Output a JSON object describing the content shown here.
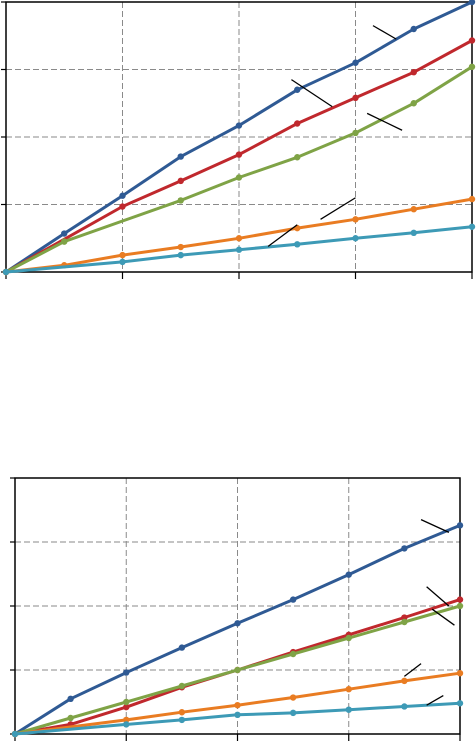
{
  "chart_data": [
    {
      "type": "line",
      "title": "",
      "xlabel": "",
      "ylabel": "",
      "xlim": [
        0,
        4
      ],
      "ylim": [
        0,
        4
      ],
      "grid": true,
      "legend": "none",
      "series": [
        {
          "color": "#2f5a94",
          "x": [
            0,
            0.5,
            1,
            1.5,
            2,
            2.5,
            3,
            3.5,
            4
          ],
          "y": [
            0,
            0.57,
            1.13,
            1.71,
            2.17,
            2.7,
            3.1,
            3.6,
            4.0
          ]
        },
        {
          "color": "#c0282d",
          "x": [
            0,
            1,
            1.5,
            2,
            2.5,
            3,
            3.5,
            4
          ],
          "y": [
            0,
            0.97,
            1.35,
            1.74,
            2.2,
            2.58,
            2.96,
            3.43
          ]
        },
        {
          "color": "#7fa346",
          "x": [
            0,
            0.5,
            1.5,
            2,
            2.5,
            3,
            3.5,
            4
          ],
          "y": [
            0,
            0.45,
            1.06,
            1.4,
            1.7,
            2.06,
            2.5,
            3.04
          ]
        },
        {
          "color": "#e97c22",
          "x": [
            0,
            0.5,
            1,
            1.5,
            2,
            2.5,
            3,
            3.5,
            4
          ],
          "y": [
            0,
            0.1,
            0.25,
            0.37,
            0.5,
            0.65,
            0.78,
            0.93,
            1.08
          ]
        },
        {
          "color": "#3d9ab6",
          "x": [
            0,
            1,
            1.5,
            2,
            2.5,
            3,
            3.5,
            4
          ],
          "y": [
            0,
            0.15,
            0.25,
            0.33,
            0.41,
            0.5,
            0.58,
            0.67
          ]
        }
      ]
    },
    {
      "type": "line",
      "title": "",
      "xlabel": "",
      "ylabel": "",
      "xlim": [
        0,
        4
      ],
      "ylim": [
        0,
        4
      ],
      "grid": true,
      "legend": "none",
      "series": [
        {
          "color": "#2f5a94",
          "x": [
            0,
            0.5,
            1,
            1.5,
            2,
            2.5,
            3,
            3.5,
            4
          ],
          "y": [
            0,
            0.55,
            0.96,
            1.35,
            1.73,
            2.1,
            2.49,
            2.9,
            3.26
          ]
        },
        {
          "color": "#c0282d",
          "x": [
            0,
            0.5,
            1,
            1.5,
            2,
            2.5,
            3,
            3.5,
            4
          ],
          "y": [
            0,
            0.15,
            0.42,
            0.73,
            1.0,
            1.28,
            1.55,
            1.82,
            2.1
          ]
        },
        {
          "color": "#7fa346",
          "x": [
            0,
            0.5,
            1,
            1.5,
            2,
            2.5,
            3,
            3.5,
            4
          ],
          "y": [
            0,
            0.25,
            0.5,
            0.75,
            1.0,
            1.25,
            1.5,
            1.75,
            2.0
          ]
        },
        {
          "color": "#e97c22",
          "x": [
            0,
            1,
            1.5,
            2,
            2.5,
            3,
            3.5,
            4
          ],
          "y": [
            0,
            0.22,
            0.34,
            0.45,
            0.57,
            0.7,
            0.83,
            0.95
          ]
        },
        {
          "color": "#3d9ab6",
          "x": [
            0,
            1,
            1.5,
            2,
            2.5,
            3,
            3.5,
            4
          ],
          "y": [
            0,
            0.15,
            0.22,
            0.3,
            0.33,
            0.38,
            0.43,
            0.48
          ]
        }
      ]
    }
  ]
}
